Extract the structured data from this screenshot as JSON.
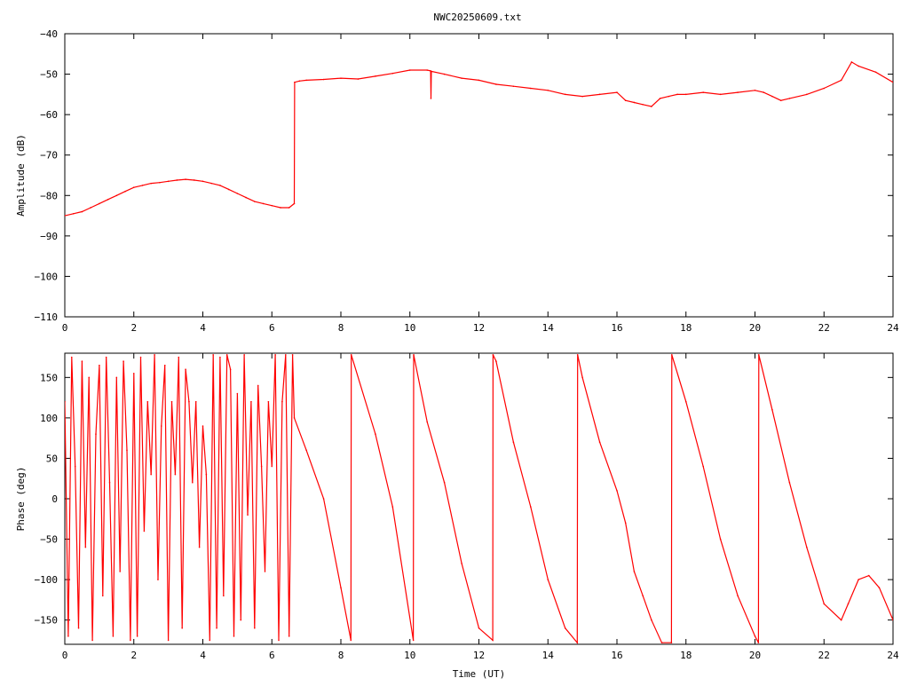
{
  "title": "NWC20250609.txt",
  "colors": {
    "series": "#ff0000",
    "axis": "#000000",
    "background": "#ffffff"
  },
  "chart_data": [
    {
      "type": "line",
      "title": "NWC20250609.txt",
      "xlabel": "",
      "ylabel": "Amplitude (dB)",
      "xlim": [
        0,
        24
      ],
      "ylim": [
        -110,
        -40
      ],
      "xticks": [
        "0",
        "2",
        "4",
        "6",
        "8",
        "10",
        "12",
        "14",
        "16",
        "18",
        "20",
        "22",
        "24"
      ],
      "yticks": [
        "−40",
        "−50",
        "−60",
        "−70",
        "−80",
        "−90",
        "−100",
        "−110"
      ],
      "grid": false,
      "x": [
        0,
        0.25,
        0.5,
        0.75,
        1,
        1.25,
        1.5,
        1.75,
        2,
        2.25,
        2.5,
        2.75,
        3,
        3.25,
        3.5,
        3.75,
        4,
        4.25,
        4.5,
        4.75,
        5,
        5.25,
        5.5,
        5.75,
        6,
        6.25,
        6.5,
        6.65,
        6.66,
        6.8,
        7,
        7.5,
        8,
        8.5,
        9,
        9.5,
        10,
        10.5,
        10.6,
        10.61,
        10.62,
        11,
        11.5,
        12,
        12.5,
        13,
        13.5,
        14,
        14.5,
        15,
        15.5,
        16,
        16.25,
        16.5,
        16.75,
        17,
        17.25,
        17.5,
        17.75,
        18,
        18.5,
        19,
        19.5,
        20,
        20.25,
        20.5,
        20.75,
        21,
        21.5,
        22,
        22.5,
        22.8,
        23,
        23.5,
        24
      ],
      "y": [
        -85,
        -84.5,
        -84,
        -83,
        -82,
        -81,
        -80,
        -79,
        -78,
        -77.5,
        -77,
        -76.8,
        -76.5,
        -76.2,
        -76,
        -76.2,
        -76.5,
        -77,
        -77.5,
        -78.5,
        -79.5,
        -80.5,
        -81.5,
        -82,
        -82.5,
        -83,
        -83,
        -82,
        -52,
        -51.7,
        -51.5,
        -51.3,
        -51,
        -51.2,
        -50.5,
        -49.8,
        -49,
        -49,
        -49.2,
        -56,
        -49.3,
        -50,
        -51,
        -51.5,
        -52.5,
        -53,
        -53.5,
        -54,
        -55,
        -55.5,
        -55,
        -54.5,
        -56.5,
        -57,
        -57.5,
        -58,
        -56,
        -55.5,
        -55,
        -55,
        -54.5,
        -55,
        -54.5,
        -54,
        -54.5,
        -55.5,
        -56.5,
        -56,
        -55,
        -53.5,
        -51.5,
        -47,
        -48,
        -49.5,
        -52
      ]
    },
    {
      "type": "line",
      "title": "",
      "xlabel": "Time (UT)",
      "ylabel": "Phase (deg)",
      "xlim": [
        0,
        24
      ],
      "ylim": [
        -180,
        180
      ],
      "xticks": [
        "0",
        "2",
        "4",
        "6",
        "8",
        "10",
        "12",
        "14",
        "16",
        "18",
        "20",
        "22",
        "24"
      ],
      "yticks": [
        "150",
        "100",
        "50",
        "0",
        "−50",
        "−100",
        "−150"
      ],
      "grid": false,
      "x": [
        0,
        0.1,
        0.2,
        0.3,
        0.4,
        0.5,
        0.6,
        0.7,
        0.8,
        0.9,
        1.0,
        1.1,
        1.2,
        1.3,
        1.4,
        1.5,
        1.6,
        1.7,
        1.8,
        1.9,
        2.0,
        2.1,
        2.2,
        2.3,
        2.4,
        2.5,
        2.6,
        2.7,
        2.8,
        2.9,
        3.0,
        3.1,
        3.2,
        3.3,
        3.4,
        3.5,
        3.6,
        3.7,
        3.8,
        3.9,
        4.0,
        4.1,
        4.2,
        4.3,
        4.4,
        4.5,
        4.6,
        4.7,
        4.8,
        4.9,
        5.0,
        5.1,
        5.2,
        5.3,
        5.4,
        5.5,
        5.6,
        5.7,
        5.8,
        5.9,
        6.0,
        6.1,
        6.2,
        6.3,
        6.4,
        6.5,
        6.6,
        6.65,
        7.0,
        7.5,
        8.0,
        8.29,
        8.3,
        9.0,
        9.5,
        10.1,
        10.11,
        10.5,
        11.0,
        11.5,
        12.0,
        12.4,
        12.41,
        12.5,
        13.0,
        13.5,
        14.0,
        14.5,
        14.85,
        14.86,
        15.0,
        15.5,
        16.0,
        16.25,
        16.5,
        16.75,
        17.0,
        17.3,
        17.58,
        17.59,
        18.0,
        18.5,
        19.0,
        19.5,
        20.0,
        20.1,
        20.11,
        20.5,
        21.0,
        21.5,
        22.0,
        22.5,
        22.7,
        23.0,
        23.3,
        23.6,
        24.0
      ],
      "y": [
        120,
        -170,
        175,
        40,
        -160,
        170,
        -60,
        150,
        -175,
        80,
        165,
        -120,
        175,
        20,
        -170,
        150,
        -90,
        170,
        60,
        -175,
        155,
        -170,
        175,
        -40,
        120,
        30,
        178,
        -100,
        90,
        165,
        -175,
        120,
        30,
        175,
        -160,
        160,
        120,
        20,
        120,
        -60,
        90,
        30,
        -175,
        178,
        -160,
        175,
        -120,
        178,
        160,
        -170,
        130,
        -150,
        178,
        -20,
        120,
        -160,
        140,
        40,
        -90,
        120,
        40,
        178,
        -175,
        120,
        178,
        -170,
        178,
        100,
        60,
        0,
        -110,
        -175,
        178,
        80,
        -10,
        -175,
        178,
        95,
        20,
        -80,
        -160,
        -175,
        178,
        170,
        70,
        -10,
        -100,
        -160,
        -178,
        178,
        150,
        70,
        10,
        -30,
        -90,
        -120,
        -150,
        -178,
        -178,
        178,
        120,
        40,
        -50,
        -120,
        -170,
        -178,
        178,
        110,
        20,
        -60,
        -130,
        -150,
        -130,
        -100,
        -95,
        -110,
        -150
      ]
    }
  ]
}
